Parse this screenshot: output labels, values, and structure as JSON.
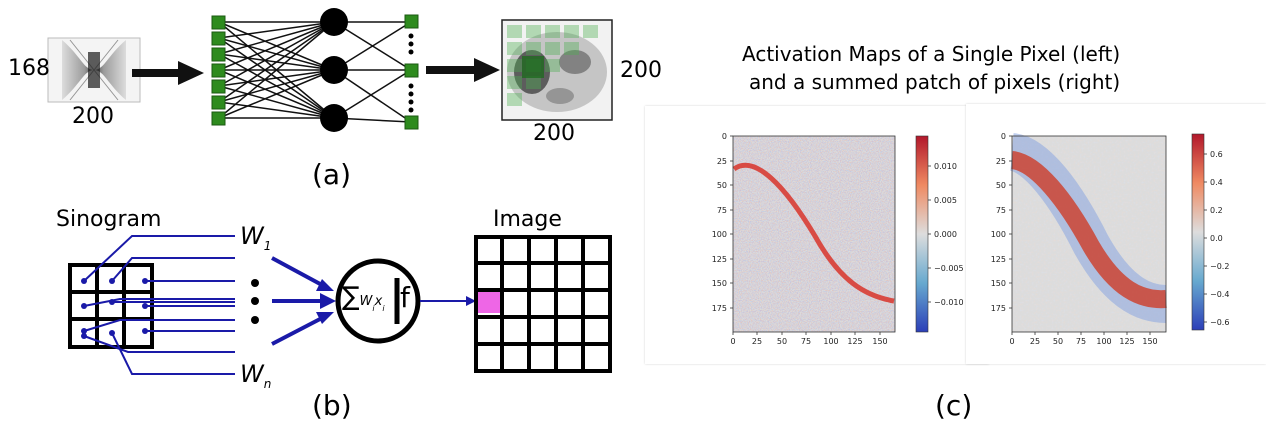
{
  "panel_a": {
    "input_height": "168",
    "input_width": "200",
    "output_height": "200",
    "output_width": "200",
    "caption": "(a)"
  },
  "panel_b": {
    "sinogram_label": "Sinogram",
    "image_label": "Image",
    "weight_first": "W",
    "weight_first_sub": "1",
    "weight_last": "W",
    "weight_last_sub": "n",
    "sum_sign": "∑",
    "sum_w": "W",
    "sum_i1": "i",
    "sum_x": "x",
    "sum_i2": "i",
    "activation": "f",
    "caption": "(b)"
  },
  "panel_c": {
    "title_line1": "Activation Maps of a Single Pixel (left)",
    "title_line2": "and a summed patch of pixels (right)",
    "caption": "(c)",
    "left_map": {
      "x_ticks": [
        "0",
        "25",
        "50",
        "75",
        "100",
        "125",
        "150"
      ],
      "y_ticks": [
        "0",
        "25",
        "50",
        "75",
        "100",
        "125",
        "150",
        "175"
      ],
      "colorbar_ticks": [
        "0.010",
        "0.005",
        "0.000",
        "−0.005",
        "−0.010"
      ],
      "colors": {
        "high": "#b2182b",
        "mid": "#dddddd",
        "low": "#2c3fb8"
      }
    },
    "right_map": {
      "x_ticks": [
        "0",
        "25",
        "50",
        "75",
        "100",
        "125",
        "150"
      ],
      "y_ticks": [
        "0",
        "25",
        "50",
        "75",
        "100",
        "125",
        "150",
        "175"
      ],
      "colorbar_ticks": [
        "0.6",
        "0.4",
        "0.2",
        "0.0",
        "−0.2",
        "−0.4",
        "−0.6"
      ],
      "colors": {
        "high": "#b2182b",
        "mid": "#dddddd",
        "low": "#2c3fb8"
      }
    }
  }
}
